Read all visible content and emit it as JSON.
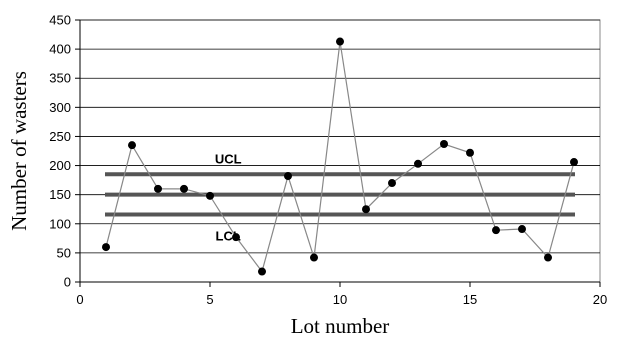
{
  "chart_data": {
    "type": "line",
    "xlabel": "Lot number",
    "ylabel": "Number of wasters",
    "xlim": [
      0,
      20
    ],
    "ylim": [
      0,
      450
    ],
    "x_ticks": [
      0,
      5,
      10,
      15,
      20
    ],
    "y_ticks": [
      0,
      50,
      100,
      150,
      200,
      250,
      300,
      350,
      400,
      450
    ],
    "grid": "horizontal",
    "series": [
      {
        "x": [
          1,
          2,
          3,
          4,
          5,
          6,
          7,
          8,
          9,
          10,
          11,
          12,
          13,
          14,
          15,
          16,
          17,
          18,
          19
        ],
        "values": [
          60,
          235,
          160,
          160,
          148,
          77,
          18,
          182,
          42,
          413,
          125,
          170,
          203,
          237,
          222,
          89,
          91,
          42,
          206
        ]
      }
    ],
    "reference_lines": [
      {
        "label": "UCL",
        "value": 185
      },
      {
        "label": "",
        "value": 150
      },
      {
        "label": "LCL",
        "value": 116
      }
    ],
    "colors": {
      "series_line": "#888888",
      "marker": "#000000",
      "reference_line": "#555555",
      "grid": "#000000",
      "frame": "#888888"
    }
  }
}
